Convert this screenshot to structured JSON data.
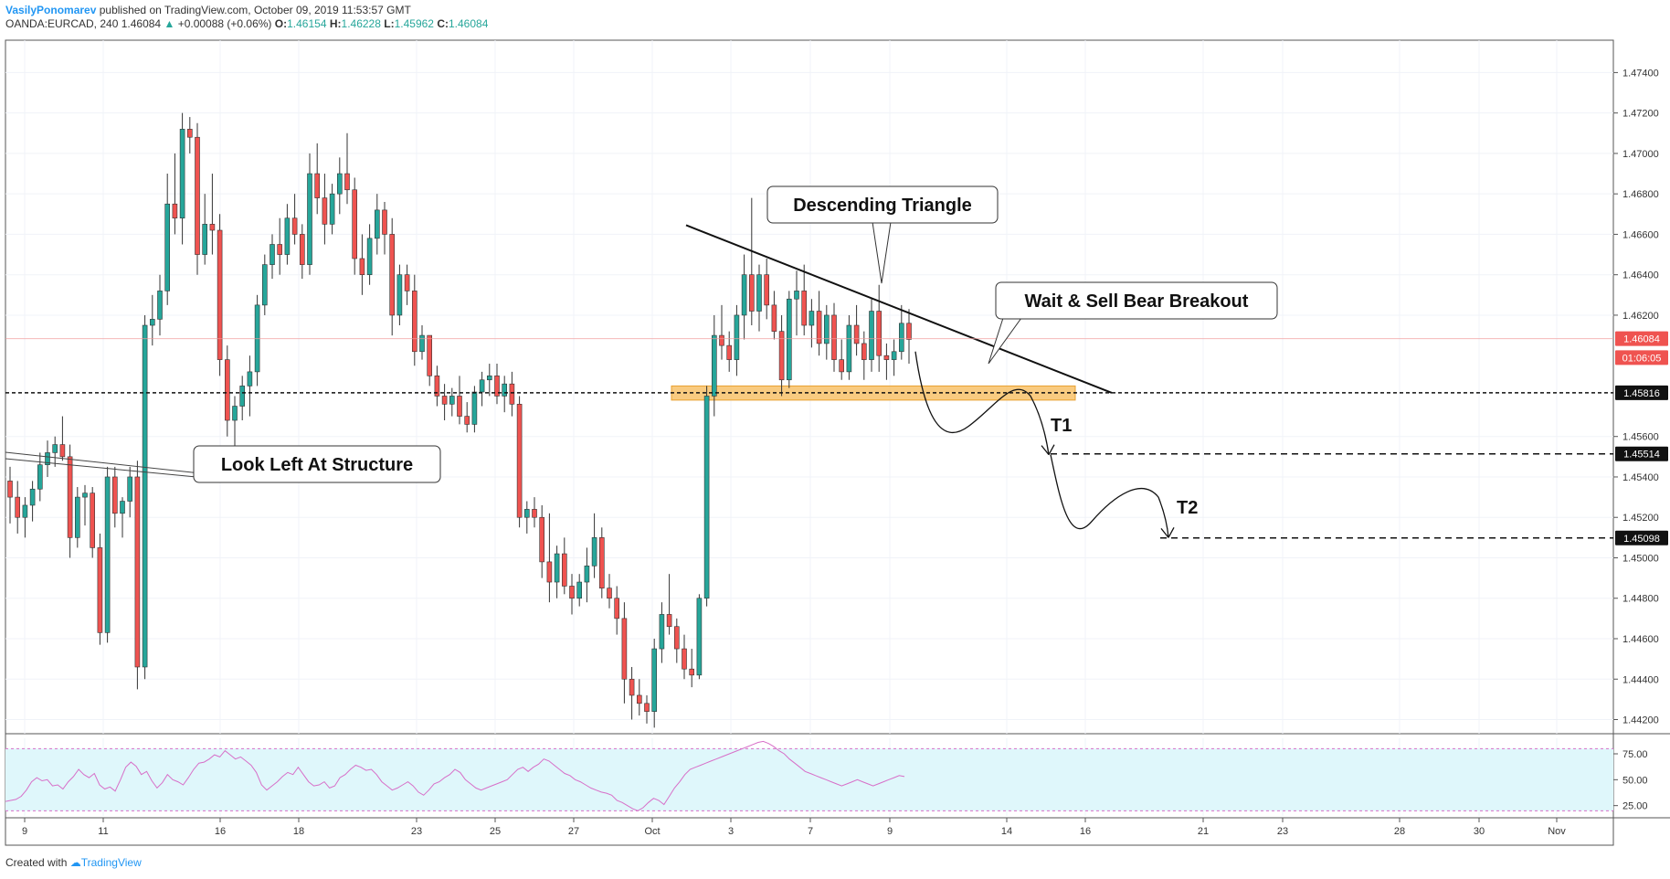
{
  "header": {
    "author": "VasilyPonomarev",
    "published_text": "published on TradingView.com, October 09, 2019 11:53:57 GMT",
    "symbol": "OANDA:EURCAD, 240",
    "last": "1.46084",
    "change_arrow": "▲",
    "change": "+0.00088 (+0.06%)",
    "o_label": "O:",
    "o": "1.46154",
    "h_label": "H:",
    "h": "1.46228",
    "l_label": "L:",
    "l": "1.45962",
    "c_label": "C:",
    "c": "1.46084"
  },
  "footer": {
    "created_with": "Created with",
    "brand": "TradingView"
  },
  "colors": {
    "up": "#26a69a",
    "down": "#ef5350",
    "zone": "#f7b955",
    "rsi_bg": "#dff7fb",
    "rsi_line": "#d76fc8"
  },
  "chart_data": {
    "type": "candlestick",
    "symbol": "OANDA:EURCAD",
    "interval": "240",
    "y_ticks": [
      "1.47400",
      "1.47200",
      "1.47000",
      "1.46800",
      "1.46600",
      "1.46400",
      "1.46200",
      "1.45600",
      "1.45400",
      "1.45200",
      "1.45000",
      "1.44800",
      "1.44600",
      "1.44400",
      "1.44200"
    ],
    "ylim": [
      1.4413,
      1.4756
    ],
    "x_ticks": [
      "9",
      "11",
      "16",
      "18",
      "23",
      "25",
      "27",
      "Oct",
      "3",
      "7",
      "9",
      "14",
      "16",
      "21",
      "23",
      "28",
      "30",
      "Nov"
    ],
    "price_badges": [
      {
        "label": "1.46084",
        "value": 1.46084,
        "style": "last"
      },
      {
        "label": "01:06:05",
        "value": 1.4599,
        "style": "timer"
      },
      {
        "label": "1.45816",
        "value": 1.45816,
        "style": "level"
      },
      {
        "label": "1.45514",
        "value": 1.45514,
        "style": "level"
      },
      {
        "label": "1.45098",
        "value": 1.45098,
        "style": "level"
      }
    ],
    "annotations": [
      {
        "text": "Descending Triangle"
      },
      {
        "text": "Wait & Sell Bear Breakout"
      },
      {
        "text": "Look Left At Structure"
      },
      {
        "text": "T1"
      },
      {
        "text": "T2"
      }
    ],
    "candles_ohlc": [
      [
        1.4538,
        1.4545,
        1.4517,
        1.453
      ],
      [
        1.453,
        1.4538,
        1.4512,
        1.452
      ],
      [
        1.452,
        1.453,
        1.451,
        1.4526
      ],
      [
        1.4526,
        1.4538,
        1.4518,
        1.4534
      ],
      [
        1.4534,
        1.4552,
        1.4528,
        1.4546
      ],
      [
        1.4546,
        1.4558,
        1.454,
        1.4552
      ],
      [
        1.4552,
        1.456,
        1.4545,
        1.4556
      ],
      [
        1.4556,
        1.457,
        1.4548,
        1.455
      ],
      [
        1.455,
        1.4556,
        1.45,
        1.451
      ],
      [
        1.451,
        1.4535,
        1.4505,
        1.453
      ],
      [
        1.453,
        1.4536,
        1.4516,
        1.4532
      ],
      [
        1.4532,
        1.4535,
        1.45,
        1.4505
      ],
      [
        1.4505,
        1.4512,
        1.4457,
        1.4463
      ],
      [
        1.4463,
        1.4545,
        1.4458,
        1.454
      ],
      [
        1.454,
        1.4545,
        1.4515,
        1.4522
      ],
      [
        1.4522,
        1.453,
        1.451,
        1.4528
      ],
      [
        1.4528,
        1.4545,
        1.452,
        1.454
      ],
      [
        1.454,
        1.4548,
        1.4435,
        1.4446
      ],
      [
        1.4446,
        1.462,
        1.444,
        1.4615
      ],
      [
        1.4615,
        1.463,
        1.4605,
        1.4618
      ],
      [
        1.4618,
        1.464,
        1.461,
        1.4632
      ],
      [
        1.4632,
        1.469,
        1.4625,
        1.4675
      ],
      [
        1.4675,
        1.47,
        1.466,
        1.4668
      ],
      [
        1.4668,
        1.472,
        1.4655,
        1.4712
      ],
      [
        1.4712,
        1.4718,
        1.47,
        1.4708
      ],
      [
        1.4708,
        1.4715,
        1.464,
        1.465
      ],
      [
        1.465,
        1.468,
        1.4645,
        1.4665
      ],
      [
        1.4665,
        1.469,
        1.465,
        1.4662
      ],
      [
        1.4662,
        1.467,
        1.459,
        1.4598
      ],
      [
        1.4598,
        1.4605,
        1.456,
        1.4568
      ],
      [
        1.4568,
        1.458,
        1.455,
        1.4575
      ],
      [
        1.4575,
        1.459,
        1.4568,
        1.4585
      ],
      [
        1.4585,
        1.46,
        1.457,
        1.4592
      ],
      [
        1.4592,
        1.463,
        1.4585,
        1.4625
      ],
      [
        1.4625,
        1.465,
        1.462,
        1.4645
      ],
      [
        1.4645,
        1.466,
        1.4638,
        1.4655
      ],
      [
        1.4655,
        1.4668,
        1.464,
        1.465
      ],
      [
        1.465,
        1.4675,
        1.4645,
        1.4668
      ],
      [
        1.4668,
        1.468,
        1.4655,
        1.466
      ],
      [
        1.466,
        1.4665,
        1.4638,
        1.4645
      ],
      [
        1.4645,
        1.47,
        1.464,
        1.469
      ],
      [
        1.469,
        1.4705,
        1.467,
        1.4678
      ],
      [
        1.4678,
        1.469,
        1.4655,
        1.4665
      ],
      [
        1.4665,
        1.4685,
        1.466,
        1.468
      ],
      [
        1.468,
        1.4698,
        1.467,
        1.469
      ],
      [
        1.469,
        1.471,
        1.4675,
        1.4682
      ],
      [
        1.4682,
        1.4688,
        1.464,
        1.4648
      ],
      [
        1.4648,
        1.466,
        1.463,
        1.464
      ],
      [
        1.464,
        1.4665,
        1.4635,
        1.4658
      ],
      [
        1.4658,
        1.468,
        1.465,
        1.4672
      ],
      [
        1.4672,
        1.4676,
        1.465,
        1.466
      ],
      [
        1.466,
        1.4668,
        1.461,
        1.462
      ],
      [
        1.462,
        1.4645,
        1.4615,
        1.464
      ],
      [
        1.464,
        1.4645,
        1.4625,
        1.4632
      ],
      [
        1.4632,
        1.464,
        1.4595,
        1.4602
      ],
      [
        1.4602,
        1.4615,
        1.4598,
        1.461
      ],
      [
        1.461,
        1.461,
        1.4585,
        1.459
      ],
      [
        1.459,
        1.4595,
        1.4575,
        1.458
      ],
      [
        1.458,
        1.4586,
        1.4568,
        1.4576
      ],
      [
        1.4576,
        1.4584,
        1.457,
        1.458
      ],
      [
        1.458,
        1.459,
        1.4566,
        1.457
      ],
      [
        1.457,
        1.4577,
        1.4562,
        1.4566
      ],
      [
        1.4566,
        1.4585,
        1.4562,
        1.4582
      ],
      [
        1.4582,
        1.4592,
        1.4575,
        1.4588
      ],
      [
        1.4588,
        1.4596,
        1.458,
        1.459
      ],
      [
        1.459,
        1.4596,
        1.4576,
        1.458
      ],
      [
        1.458,
        1.459,
        1.4572,
        1.4586
      ],
      [
        1.4586,
        1.4592,
        1.457,
        1.4576
      ],
      [
        1.4576,
        1.458,
        1.4515,
        1.452
      ],
      [
        1.452,
        1.4528,
        1.4512,
        1.4524
      ],
      [
        1.4524,
        1.453,
        1.4515,
        1.452
      ],
      [
        1.452,
        1.4526,
        1.449,
        1.4498
      ],
      [
        1.4498,
        1.4522,
        1.4478,
        1.4488
      ],
      [
        1.4488,
        1.4506,
        1.448,
        1.4502
      ],
      [
        1.4502,
        1.451,
        1.4482,
        1.4486
      ],
      [
        1.4486,
        1.4492,
        1.4472,
        1.448
      ],
      [
        1.448,
        1.4492,
        1.4476,
        1.4488
      ],
      [
        1.4488,
        1.4505,
        1.4478,
        1.4496
      ],
      [
        1.4496,
        1.4522,
        1.449,
        1.451
      ],
      [
        1.451,
        1.4515,
        1.448,
        1.4485
      ],
      [
        1.4485,
        1.4492,
        1.4475,
        1.448
      ],
      [
        1.448,
        1.4486,
        1.4462,
        1.447
      ],
      [
        1.447,
        1.4478,
        1.4428,
        1.444
      ],
      [
        1.444,
        1.4446,
        1.442,
        1.4432
      ],
      [
        1.4432,
        1.444,
        1.4422,
        1.4428
      ],
      [
        1.4428,
        1.4432,
        1.4418,
        1.4424
      ],
      [
        1.4424,
        1.446,
        1.4416,
        1.4455
      ],
      [
        1.4455,
        1.4478,
        1.4448,
        1.4472
      ],
      [
        1.4472,
        1.4492,
        1.4462,
        1.4466
      ],
      [
        1.4466,
        1.447,
        1.4448,
        1.4455
      ],
      [
        1.4455,
        1.4462,
        1.444,
        1.4445
      ],
      [
        1.4445,
        1.4455,
        1.4436,
        1.4442
      ],
      [
        1.4442,
        1.4482,
        1.444,
        1.448
      ],
      [
        1.448,
        1.4585,
        1.4476,
        1.458
      ],
      [
        1.458,
        1.462,
        1.457,
        1.461
      ],
      [
        1.461,
        1.4625,
        1.4598,
        1.4605
      ],
      [
        1.4605,
        1.4612,
        1.4592,
        1.4598
      ],
      [
        1.4598,
        1.4625,
        1.459,
        1.462
      ],
      [
        1.462,
        1.465,
        1.4608,
        1.464
      ],
      [
        1.464,
        1.4678,
        1.4615,
        1.4622
      ],
      [
        1.4622,
        1.4645,
        1.4612,
        1.464
      ],
      [
        1.464,
        1.4648,
        1.4618,
        1.4625
      ],
      [
        1.4625,
        1.4632,
        1.4608,
        1.4612
      ],
      [
        1.4612,
        1.462,
        1.458,
        1.4588
      ],
      [
        1.4588,
        1.4632,
        1.4584,
        1.4628
      ],
      [
        1.4628,
        1.4642,
        1.461,
        1.4632
      ],
      [
        1.4632,
        1.4645,
        1.461,
        1.4615
      ],
      [
        1.4615,
        1.4628,
        1.4604,
        1.4622
      ],
      [
        1.4622,
        1.4632,
        1.46,
        1.4606
      ],
      [
        1.4606,
        1.4625,
        1.4598,
        1.462
      ],
      [
        1.462,
        1.4626,
        1.4592,
        1.4598
      ],
      [
        1.4598,
        1.4608,
        1.4588,
        1.4592
      ],
      [
        1.4592,
        1.462,
        1.4588,
        1.4615
      ],
      [
        1.4615,
        1.4625,
        1.46,
        1.4606
      ],
      [
        1.4606,
        1.4612,
        1.4588,
        1.4598
      ],
      [
        1.4598,
        1.4628,
        1.4592,
        1.4622
      ],
      [
        1.4622,
        1.4635,
        1.4592,
        1.46
      ],
      [
        1.46,
        1.4606,
        1.4588,
        1.4598
      ],
      [
        1.4598,
        1.4608,
        1.459,
        1.4602
      ],
      [
        1.4602,
        1.4625,
        1.4598,
        1.4616
      ],
      [
        1.4616,
        1.4623,
        1.4596,
        1.4608
      ]
    ],
    "rsi": {
      "levels": [
        "75.00",
        "50.00",
        "25.00"
      ],
      "ylim": [
        15,
        90
      ],
      "bands": [
        80,
        20
      ],
      "values": [
        29,
        30,
        31,
        34,
        40,
        48,
        52,
        49,
        50,
        44,
        45,
        41,
        48,
        53,
        60,
        55,
        52,
        56,
        45,
        41,
        43,
        39,
        50,
        62,
        67,
        63,
        55,
        58,
        49,
        42,
        47,
        55,
        50,
        48,
        45,
        52,
        60,
        66,
        67,
        70,
        74,
        72,
        78,
        74,
        70,
        72,
        68,
        64,
        57,
        45,
        40,
        44,
        48,
        53,
        57,
        55,
        62,
        55,
        48,
        44,
        45,
        48,
        42,
        44,
        52,
        55,
        60,
        64,
        62,
        59,
        60,
        55,
        48,
        44,
        40,
        42,
        45,
        48,
        44,
        38,
        35,
        40,
        46,
        48,
        52,
        55,
        60,
        57,
        50,
        46,
        42,
        40,
        42,
        44,
        46,
        48,
        50,
        55,
        60,
        62,
        58,
        62,
        65,
        70,
        68,
        64,
        60,
        56,
        54,
        50,
        48,
        45,
        42,
        40,
        38,
        37,
        35,
        30,
        28,
        25,
        22,
        20,
        23,
        28,
        32,
        30,
        26,
        34,
        42,
        48,
        55,
        60,
        62,
        64,
        66,
        68,
        70,
        72,
        74,
        76,
        78,
        80,
        82,
        84,
        86,
        87,
        85,
        82,
        78,
        75,
        70,
        66,
        62,
        58,
        56,
        54,
        52,
        50,
        48,
        46,
        44,
        46,
        48,
        50,
        48,
        46,
        44,
        46,
        48,
        50,
        52,
        54,
        53
      ],
      "x_count": 173
    },
    "grid": true
  }
}
